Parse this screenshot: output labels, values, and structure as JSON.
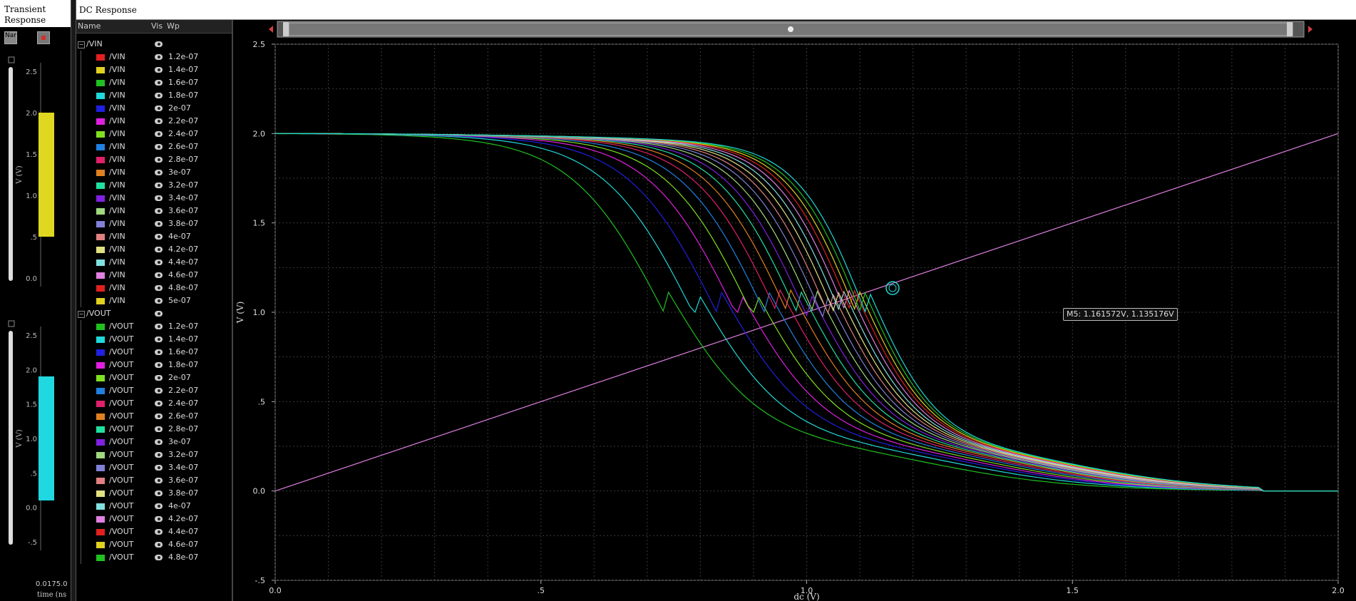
{
  "left_panel": {
    "title": "Transient\nResponse",
    "buttons": [
      "Nam",
      ""
    ],
    "y_label": "V (V)",
    "x_label": "time (ns",
    "x_ticks": [
      "0.0",
      "175.0"
    ],
    "top_ticks": [
      "2.5",
      "2.0",
      "1.5",
      "1.0",
      ".5",
      "0.0"
    ],
    "bottom_ticks": [
      "2.5",
      "2.0",
      "1.5",
      "1.0",
      ".5",
      "0.0",
      "-.5"
    ]
  },
  "topbar": {
    "title": "DC Response"
  },
  "tree": {
    "headers": {
      "name": "Name",
      "vis": "Vis",
      "wp": "Wp"
    },
    "groups": [
      {
        "label": "/VIN",
        "rows": [
          {
            "name": "/VIN",
            "wp": "1.2e-07",
            "color": "#e02020"
          },
          {
            "name": "/VIN",
            "wp": "1.4e-07",
            "color": "#e0d020"
          },
          {
            "name": "/VIN",
            "wp": "1.6e-07",
            "color": "#20c020"
          },
          {
            "name": "/VIN",
            "wp": "1.8e-07",
            "color": "#20d8d8"
          },
          {
            "name": "/VIN",
            "wp": "2e-07",
            "color": "#2020e0"
          },
          {
            "name": "/VIN",
            "wp": "2.2e-07",
            "color": "#e020e0"
          },
          {
            "name": "/VIN",
            "wp": "2.4e-07",
            "color": "#80e020"
          },
          {
            "name": "/VIN",
            "wp": "2.6e-07",
            "color": "#2080e0"
          },
          {
            "name": "/VIN",
            "wp": "2.8e-07",
            "color": "#e0206a"
          },
          {
            "name": "/VIN",
            "wp": "3e-07",
            "color": "#e08020"
          },
          {
            "name": "/VIN",
            "wp": "3.2e-07",
            "color": "#20e0a0"
          },
          {
            "name": "/VIN",
            "wp": "3.4e-07",
            "color": "#8020e0"
          },
          {
            "name": "/VIN",
            "wp": "3.6e-07",
            "color": "#a0d880"
          },
          {
            "name": "/VIN",
            "wp": "3.8e-07",
            "color": "#8080d8"
          },
          {
            "name": "/VIN",
            "wp": "4e-07",
            "color": "#e08080"
          },
          {
            "name": "/VIN",
            "wp": "4.2e-07",
            "color": "#e0e080"
          },
          {
            "name": "/VIN",
            "wp": "4.4e-07",
            "color": "#80e0e0"
          },
          {
            "name": "/VIN",
            "wp": "4.6e-07",
            "color": "#e080e0"
          },
          {
            "name": "/VIN",
            "wp": "4.8e-07",
            "color": "#e02020"
          },
          {
            "name": "/VIN",
            "wp": "5e-07",
            "color": "#e0d020"
          }
        ]
      },
      {
        "label": "/VOUT",
        "rows": [
          {
            "name": "/VOUT",
            "wp": "1.2e-07",
            "color": "#20c020"
          },
          {
            "name": "/VOUT",
            "wp": "1.4e-07",
            "color": "#20d8d8"
          },
          {
            "name": "/VOUT",
            "wp": "1.6e-07",
            "color": "#2020e0"
          },
          {
            "name": "/VOUT",
            "wp": "1.8e-07",
            "color": "#e020e0"
          },
          {
            "name": "/VOUT",
            "wp": "2e-07",
            "color": "#80e020"
          },
          {
            "name": "/VOUT",
            "wp": "2.2e-07",
            "color": "#2080e0"
          },
          {
            "name": "/VOUT",
            "wp": "2.4e-07",
            "color": "#e0206a"
          },
          {
            "name": "/VOUT",
            "wp": "2.6e-07",
            "color": "#e08020"
          },
          {
            "name": "/VOUT",
            "wp": "2.8e-07",
            "color": "#20e0a0"
          },
          {
            "name": "/VOUT",
            "wp": "3e-07",
            "color": "#8020e0"
          },
          {
            "name": "/VOUT",
            "wp": "3.2e-07",
            "color": "#a0d880"
          },
          {
            "name": "/VOUT",
            "wp": "3.4e-07",
            "color": "#8080d8"
          },
          {
            "name": "/VOUT",
            "wp": "3.6e-07",
            "color": "#e08080"
          },
          {
            "name": "/VOUT",
            "wp": "3.8e-07",
            "color": "#e0e080"
          },
          {
            "name": "/VOUT",
            "wp": "4e-07",
            "color": "#80e0e0"
          },
          {
            "name": "/VOUT",
            "wp": "4.2e-07",
            "color": "#e080e0"
          },
          {
            "name": "/VOUT",
            "wp": "4.4e-07",
            "color": "#e02020"
          },
          {
            "name": "/VOUT",
            "wp": "4.6e-07",
            "color": "#e0d020"
          },
          {
            "name": "/VOUT",
            "wp": "4.8e-07",
            "color": "#20c020"
          }
        ]
      }
    ]
  },
  "marker": {
    "label": "M5: 1.161572V, 1.135176V",
    "x": 1.161572,
    "y": 1.135176
  },
  "chart_data": {
    "type": "line",
    "title": "",
    "xlabel": "dc (V)",
    "ylabel": "V (V)",
    "xlim": [
      0,
      2.0
    ],
    "ylim": [
      -0.5,
      2.5
    ],
    "x_ticks": [
      0.0,
      0.5,
      1.0,
      1.5,
      2.0
    ],
    "x_tick_labels": [
      "0.0",
      ".5",
      "1.0",
      "1.5",
      "2.0"
    ],
    "y_ticks": [
      -0.5,
      0.0,
      0.5,
      1.0,
      1.5,
      2.0,
      2.5
    ],
    "y_tick_labels": [
      "-.5",
      "0.0",
      ".5",
      "1.0",
      "1.5",
      "2.0",
      "2.5"
    ],
    "grid": true,
    "series": [
      {
        "name": "/VIN",
        "color": "#e080e0",
        "x": [
          0.0,
          2.0
        ],
        "y": [
          0.0,
          2.0
        ]
      },
      {
        "name": "/VOUT",
        "wp": "1.2e-07",
        "color": "#20c020",
        "vm": 0.735,
        "vmid": 0.9,
        "k": 11.5
      },
      {
        "name": "/VOUT",
        "wp": "1.4e-07",
        "color": "#20d8d8",
        "vm": 0.79,
        "vmid": 0.95,
        "k": 11.8
      },
      {
        "name": "/VOUT",
        "wp": "1.6e-07",
        "color": "#2020e0",
        "vm": 0.835,
        "vmid": 0.98,
        "k": 12.0
      },
      {
        "name": "/VOUT",
        "wp": "1.8e-07",
        "color": "#e020e0",
        "vm": 0.87,
        "vmid": 1.0,
        "k": 12.2
      },
      {
        "name": "/VOUT",
        "wp": "2e-07",
        "color": "#80e020",
        "vm": 0.9,
        "vmid": 1.02,
        "k": 12.4
      },
      {
        "name": "/VOUT",
        "wp": "2.2e-07",
        "color": "#2080e0",
        "vm": 0.925,
        "vmid": 1.04,
        "k": 12.6
      },
      {
        "name": "/VOUT",
        "wp": "2.4e-07",
        "color": "#e0206a",
        "vm": 0.948,
        "vmid": 1.055,
        "k": 12.8
      },
      {
        "name": "/VOUT",
        "wp": "2.6e-07",
        "color": "#e08020",
        "vm": 0.968,
        "vmid": 1.07,
        "k": 13.0
      },
      {
        "name": "/VOUT",
        "wp": "2.8e-07",
        "color": "#20e0a0",
        "vm": 0.986,
        "vmid": 1.08,
        "k": 13.2
      },
      {
        "name": "/VOUT",
        "wp": "3e-07",
        "color": "#8020e0",
        "vm": 1.002,
        "vmid": 1.09,
        "k": 13.4
      },
      {
        "name": "/VOUT",
        "wp": "3.2e-07",
        "color": "#a0d880",
        "vm": 1.017,
        "vmid": 1.1,
        "k": 13.6
      },
      {
        "name": "/VOUT",
        "wp": "3.4e-07",
        "color": "#8080d8",
        "vm": 1.031,
        "vmid": 1.108,
        "k": 13.8
      },
      {
        "name": "/VOUT",
        "wp": "3.6e-07",
        "color": "#e08080",
        "vm": 1.044,
        "vmid": 1.116,
        "k": 14.0
      },
      {
        "name": "/VOUT",
        "wp": "3.8e-07",
        "color": "#e0e080",
        "vm": 1.056,
        "vmid": 1.123,
        "k": 14.2
      },
      {
        "name": "/VOUT",
        "wp": "4e-07",
        "color": "#80e0e0",
        "vm": 1.067,
        "vmid": 1.13,
        "k": 14.4
      },
      {
        "name": "/VOUT",
        "wp": "4.2e-07",
        "color": "#e080e0",
        "vm": 1.078,
        "vmid": 1.137,
        "k": 14.6
      },
      {
        "name": "/VOUT",
        "wp": "4.4e-07",
        "color": "#e02020",
        "vm": 1.088,
        "vmid": 1.144,
        "k": 14.8
      },
      {
        "name": "/VOUT",
        "wp": "4.6e-07",
        "color": "#e0d020",
        "vm": 1.097,
        "vmid": 1.15,
        "k": 15.0
      },
      {
        "name": "/VOUT",
        "wp": "4.8e-07",
        "color": "#20c020",
        "vm": 1.106,
        "vmid": 1.156,
        "k": 15.2
      },
      {
        "name": "/VOUT",
        "wp": "5e-07",
        "color": "#20d8d8",
        "vm": 1.115,
        "vmid": 1.161,
        "k": 15.4
      }
    ]
  }
}
